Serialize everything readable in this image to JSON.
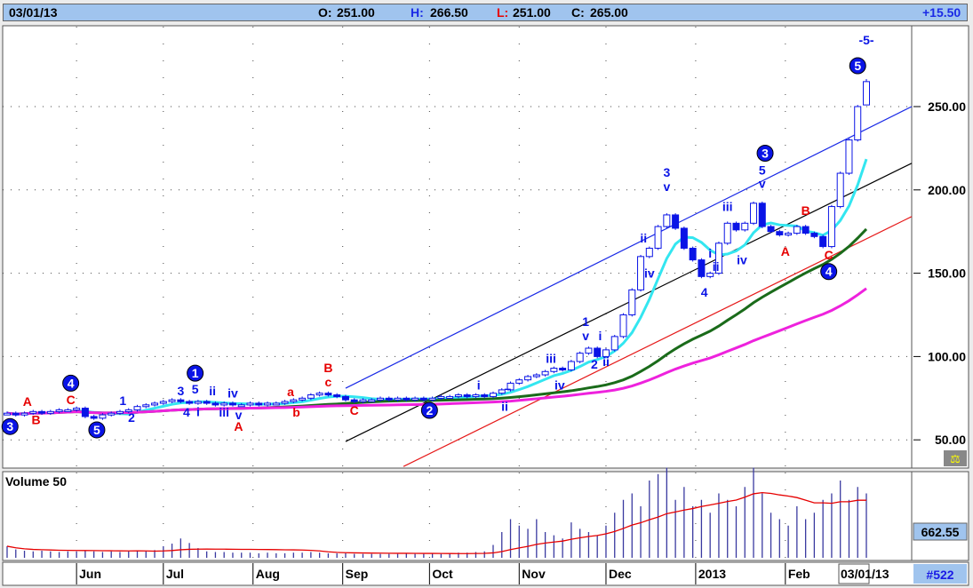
{
  "header": {
    "date": "03/01/13",
    "open_label": "O:",
    "open": "251.00",
    "high_label": "H:",
    "high": "266.50",
    "low_label": "L:",
    "low": "251.00",
    "close_label": "C:",
    "close": "265.00",
    "change": "+15.50"
  },
  "volume_panel": {
    "title": "Volume 50",
    "value": "662.55"
  },
  "footer": {
    "current_date": "03/01/13",
    "count": "#522"
  },
  "colors": {
    "header_bg": "#a0c4ee",
    "candle": "#0a14e6",
    "ma_fast": "#33e6f0",
    "ma_mid": "#1a6b1a",
    "ma_slow": "#ee22dd",
    "volume_ma": "#e60000",
    "volume_bar": "#3a3aa0",
    "channel_upper": "#1a2ae6",
    "channel_mid": "#000000",
    "channel_lower": "#e61a1a",
    "label_blue": "#0a14e6",
    "label_red": "#e60000"
  },
  "chart_data": {
    "type": "candlestick",
    "ylim": [
      34,
      298
    ],
    "y_ticks": [
      "250.00",
      "200.00",
      "150.00",
      "100.00",
      "50.00"
    ],
    "y_tick_values": [
      250,
      200,
      150,
      100,
      50
    ],
    "x_ticks": [
      {
        "date": "2012-06-01",
        "label": "Jun"
      },
      {
        "date": "2012-07-01",
        "label": "Jul"
      },
      {
        "date": "2012-08-01",
        "label": "Aug"
      },
      {
        "date": "2012-09-01",
        "label": "Sep"
      },
      {
        "date": "2012-10-01",
        "label": "Oct"
      },
      {
        "date": "2012-11-01",
        "label": "Nov"
      },
      {
        "date": "2012-12-01",
        "label": "Dec"
      },
      {
        "date": "2013-01-01",
        "label": "2013"
      },
      {
        "date": "2013-02-01",
        "label": "Feb"
      }
    ],
    "last_bar": {
      "date": "2013-03-01",
      "open": 251.0,
      "high": 266.5,
      "low": 251.0,
      "close": 265.0
    },
    "bars": [
      [
        "2012-05-08",
        66,
        180
      ],
      [
        "2012-05-11",
        65,
        130
      ],
      [
        "2012-05-14",
        66,
        110
      ],
      [
        "2012-05-17",
        67,
        100
      ],
      [
        "2012-05-20",
        66,
        110
      ],
      [
        "2012-05-23",
        67,
        100
      ],
      [
        "2012-05-26",
        68,
        90
      ],
      [
        "2012-05-29",
        68,
        100
      ],
      [
        "2012-06-01",
        69,
        100
      ],
      [
        "2012-06-04",
        64,
        110
      ],
      [
        "2012-06-07",
        63,
        100
      ],
      [
        "2012-06-10",
        65,
        90
      ],
      [
        "2012-06-13",
        66,
        100
      ],
      [
        "2012-06-16",
        67,
        90
      ],
      [
        "2012-06-19",
        68,
        100
      ],
      [
        "2012-06-22",
        70,
        110
      ],
      [
        "2012-06-25",
        71,
        100
      ],
      [
        "2012-06-28",
        72,
        120
      ],
      [
        "2012-07-01",
        73,
        180
      ],
      [
        "2012-07-04",
        74,
        220
      ],
      [
        "2012-07-07",
        73,
        300
      ],
      [
        "2012-07-10",
        72,
        230
      ],
      [
        "2012-07-13",
        73,
        150
      ],
      [
        "2012-07-16",
        72,
        100
      ],
      [
        "2012-07-19",
        71,
        90
      ],
      [
        "2012-07-22",
        72,
        90
      ],
      [
        "2012-07-25",
        71,
        80
      ],
      [
        "2012-07-28",
        71,
        80
      ],
      [
        "2012-07-31",
        72,
        80
      ],
      [
        "2012-08-03",
        71,
        70
      ],
      [
        "2012-08-06",
        72,
        80
      ],
      [
        "2012-08-09",
        72,
        70
      ],
      [
        "2012-08-12",
        73,
        70
      ],
      [
        "2012-08-15",
        74,
        80
      ],
      [
        "2012-08-18",
        75,
        80
      ],
      [
        "2012-08-21",
        77,
        90
      ],
      [
        "2012-08-24",
        78,
        80
      ],
      [
        "2012-08-27",
        77,
        70
      ],
      [
        "2012-08-30",
        76,
        70
      ],
      [
        "2012-09-02",
        74,
        70
      ],
      [
        "2012-09-05",
        73,
        60
      ],
      [
        "2012-09-08",
        74,
        60
      ],
      [
        "2012-09-11",
        74,
        60
      ],
      [
        "2012-09-14",
        75,
        60
      ],
      [
        "2012-09-17",
        74,
        60
      ],
      [
        "2012-09-20",
        75,
        60
      ],
      [
        "2012-09-23",
        74,
        70
      ],
      [
        "2012-09-26",
        75,
        60
      ],
      [
        "2012-09-29",
        74,
        60
      ],
      [
        "2012-10-02",
        75,
        70
      ],
      [
        "2012-10-05",
        76,
        60
      ],
      [
        "2012-10-08",
        76,
        70
      ],
      [
        "2012-10-11",
        77,
        80
      ],
      [
        "2012-10-14",
        76,
        80
      ],
      [
        "2012-10-17",
        77,
        90
      ],
      [
        "2012-10-20",
        76,
        100
      ],
      [
        "2012-10-23",
        78,
        200
      ],
      [
        "2012-10-26",
        80,
        400
      ],
      [
        "2012-10-29",
        84,
        600
      ],
      [
        "2012-11-01",
        86,
        500
      ],
      [
        "2012-11-04",
        88,
        450
      ],
      [
        "2012-11-07",
        89,
        600
      ],
      [
        "2012-11-10",
        91,
        400
      ],
      [
        "2012-11-13",
        93,
        350
      ],
      [
        "2012-11-16",
        92,
        300
      ],
      [
        "2012-11-19",
        97,
        550
      ],
      [
        "2012-11-22",
        102,
        450
      ],
      [
        "2012-11-25",
        105,
        400
      ],
      [
        "2012-11-28",
        100,
        350
      ],
      [
        "2012-12-01",
        104,
        500
      ],
      [
        "2012-12-04",
        112,
        700
      ],
      [
        "2012-12-07",
        125,
        900
      ],
      [
        "2012-12-10",
        140,
        1000
      ],
      [
        "2012-12-13",
        160,
        800
      ],
      [
        "2012-12-16",
        165,
        1200
      ],
      [
        "2012-12-19",
        178,
        1300
      ],
      [
        "2012-12-22",
        185,
        1400
      ],
      [
        "2012-12-25",
        177,
        900
      ],
      [
        "2012-12-28",
        165,
        1100
      ],
      [
        "2012-12-31",
        158,
        800
      ],
      [
        "2013-01-03",
        148,
        900
      ],
      [
        "2013-01-06",
        150,
        700
      ],
      [
        "2013-01-09",
        168,
        1000
      ],
      [
        "2013-01-12",
        180,
        900
      ],
      [
        "2013-01-15",
        176,
        800
      ],
      [
        "2013-01-18",
        180,
        1100
      ],
      [
        "2013-01-21",
        192,
        1400
      ],
      [
        "2013-01-24",
        178,
        1000
      ],
      [
        "2013-01-27",
        175,
        700
      ],
      [
        "2013-01-30",
        173,
        600
      ],
      [
        "2013-02-02",
        174,
        500
      ],
      [
        "2013-02-05",
        178,
        800
      ],
      [
        "2013-02-08",
        174,
        600
      ],
      [
        "2013-02-11",
        172,
        700
      ],
      [
        "2013-02-14",
        166,
        900
      ],
      [
        "2013-02-17",
        190,
        1000
      ],
      [
        "2013-02-20",
        210,
        1200
      ],
      [
        "2013-02-23",
        230,
        900
      ],
      [
        "2013-02-26",
        250,
        1100
      ],
      [
        "2013-03-01",
        265,
        1000
      ]
    ],
    "trendlines": [
      {
        "color": "#1a2ae6",
        "from": [
          "2012-09-02",
          81
        ],
        "to": [
          "2013-03-18",
          250
        ]
      },
      {
        "color": "#000000",
        "from": [
          "2012-09-02",
          49
        ],
        "to": [
          "2013-03-18",
          216
        ]
      },
      {
        "color": "#e61a1a",
        "from": [
          "2012-09-22",
          34
        ],
        "to": [
          "2013-03-18",
          184
        ]
      }
    ],
    "wave_labels": [
      {
        "t": "3",
        "c": "blue",
        "circle": true,
        "d": "2012-05-09",
        "p": 58
      },
      {
        "t": "A",
        "c": "red",
        "d": "2012-05-15",
        "p": 73
      },
      {
        "t": "B",
        "c": "red",
        "d": "2012-05-18",
        "p": 62
      },
      {
        "t": "4",
        "c": "blue",
        "circle": true,
        "d": "2012-05-30",
        "p": 84
      },
      {
        "t": "C",
        "c": "red",
        "d": "2012-05-30",
        "p": 74
      },
      {
        "t": "5",
        "c": "blue",
        "circle": true,
        "d": "2012-06-08",
        "p": 56
      },
      {
        "t": "1",
        "c": "blue",
        "d": "2012-06-17",
        "p": 73.5
      },
      {
        "t": "2",
        "c": "blue",
        "d": "2012-06-20",
        "p": 63.5
      },
      {
        "t": "1",
        "c": "blue",
        "circle": true,
        "d": "2012-07-12",
        "p": 90
      },
      {
        "t": "3",
        "c": "blue",
        "d": "2012-07-07",
        "p": 79.5
      },
      {
        "t": "5",
        "c": "blue",
        "d": "2012-07-12",
        "p": 80.5
      },
      {
        "t": "4",
        "c": "blue",
        "d": "2012-07-09",
        "p": 66.6
      },
      {
        "t": "i",
        "c": "blue",
        "d": "2012-07-13",
        "p": 67
      },
      {
        "t": "ii",
        "c": "blue",
        "d": "2012-07-18",
        "p": 79.5
      },
      {
        "t": "iv",
        "c": "blue",
        "d": "2012-07-25",
        "p": 78
      },
      {
        "t": "iii",
        "c": "blue",
        "d": "2012-07-22",
        "p": 66.6
      },
      {
        "t": "v",
        "c": "blue",
        "d": "2012-07-27",
        "p": 65
      },
      {
        "t": "A",
        "c": "red",
        "d": "2012-07-27",
        "p": 58
      },
      {
        "t": "a",
        "c": "red",
        "d": "2012-08-14",
        "p": 79
      },
      {
        "t": "b",
        "c": "red",
        "d": "2012-08-16",
        "p": 66.6
      },
      {
        "t": "B",
        "c": "red",
        "d": "2012-08-27",
        "p": 93.3
      },
      {
        "t": "c",
        "c": "red",
        "d": "2012-08-27",
        "p": 84.8
      },
      {
        "t": "C",
        "c": "red",
        "d": "2012-09-05",
        "p": 67.7
      },
      {
        "t": "2",
        "c": "blue",
        "circle": true,
        "d": "2012-10-01",
        "p": 67.7
      },
      {
        "t": "i",
        "c": "blue",
        "d": "2012-10-18",
        "p": 83
      },
      {
        "t": "ii",
        "c": "blue",
        "d": "2012-10-27",
        "p": 70
      },
      {
        "t": "–",
        "c": "blue",
        "d": "2012-10-28",
        "p": 81
      },
      {
        "t": "iii",
        "c": "blue",
        "d": "2012-11-12",
        "p": 99
      },
      {
        "t": "iv",
        "c": "blue",
        "d": "2012-11-15",
        "p": 83
      },
      {
        "t": "1",
        "c": "blue",
        "d": "2012-11-24",
        "p": 121
      },
      {
        "t": "v",
        "c": "blue",
        "d": "2012-11-24",
        "p": 112.5
      },
      {
        "t": "i",
        "c": "blue",
        "d": "2012-11-29",
        "p": 112.5
      },
      {
        "t": "2",
        "c": "blue",
        "d": "2012-11-27",
        "p": 95.4
      },
      {
        "t": "ii",
        "c": "blue",
        "d": "2012-12-01",
        "p": 97
      },
      {
        "t": "ii",
        "c": "blue",
        "d": "2012-12-14",
        "p": 171
      },
      {
        "t": "iv",
        "c": "blue",
        "d": "2012-12-16",
        "p": 150
      },
      {
        "t": "3",
        "c": "blue",
        "d": "2012-12-22",
        "p": 210.6
      },
      {
        "t": "v",
        "c": "blue",
        "d": "2012-12-22",
        "p": 202
      },
      {
        "t": "4",
        "c": "blue",
        "d": "2013-01-04",
        "p": 138.6
      },
      {
        "t": "i",
        "c": "blue",
        "d": "2013-01-06",
        "p": 162
      },
      {
        "t": "ii",
        "c": "blue",
        "d": "2013-01-08",
        "p": 154
      },
      {
        "t": "iii",
        "c": "blue",
        "d": "2013-01-12",
        "p": 190
      },
      {
        "t": "iv",
        "c": "blue",
        "d": "2013-01-17",
        "p": 158
      },
      {
        "t": "3",
        "c": "blue",
        "circle": true,
        "d": "2013-01-25",
        "p": 222
      },
      {
        "t": "5",
        "c": "blue",
        "d": "2013-01-24",
        "p": 212
      },
      {
        "t": "v",
        "c": "blue",
        "d": "2013-01-24",
        "p": 204
      },
      {
        "t": "A",
        "c": "red",
        "d": "2013-02-01",
        "p": 163
      },
      {
        "t": "B",
        "c": "red",
        "d": "2013-02-08",
        "p": 187.6
      },
      {
        "t": "C",
        "c": "red",
        "d": "2013-02-16",
        "p": 161
      },
      {
        "t": "4",
        "c": "blue",
        "circle": true,
        "d": "2013-02-16",
        "p": 151
      },
      {
        "t": "5",
        "c": "blue",
        "circle": true,
        "d": "2013-02-26",
        "p": 274.5
      },
      {
        "t": "-5-",
        "c": "blue",
        "d": "2013-03-01",
        "p": 290
      }
    ]
  }
}
